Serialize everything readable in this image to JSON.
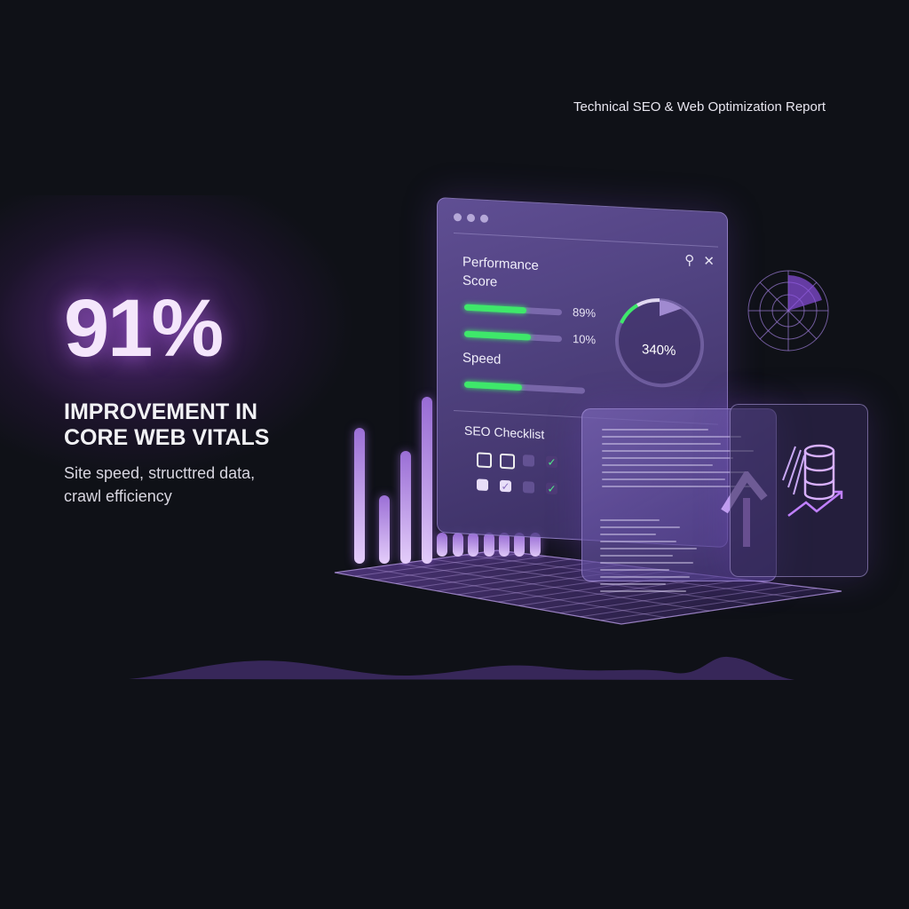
{
  "header": {
    "report_title": "Technical SEO & Web Optimization Report"
  },
  "hero": {
    "stat": "91%",
    "headline_line1": "IMPROVEMENT IN",
    "headline_line2": "CORE WEB VITALS",
    "sub_line1": "Site speed, structtred data,",
    "sub_line2": "crawl efficiency"
  },
  "dashboard": {
    "performance_label_line1": "Performance",
    "performance_label_line2": "Score",
    "bars": [
      {
        "fill": 0.64,
        "label": "89%"
      },
      {
        "fill": 0.68,
        "label": "10%"
      }
    ],
    "speed_label": "Speed",
    "speed_fill": 0.48,
    "gauge_value": "340%",
    "icons": [
      "search-icon",
      "close-icon"
    ],
    "checklist_title": "SEO Checklist",
    "checklist": [
      [
        "empty",
        "empty",
        "dim",
        "checked"
      ],
      [
        "filled",
        "checked-light",
        "dim",
        "checked"
      ]
    ]
  },
  "colors": {
    "accent": "#9b6fd6",
    "progress": "#3ee86a",
    "background": "#0f1117"
  }
}
